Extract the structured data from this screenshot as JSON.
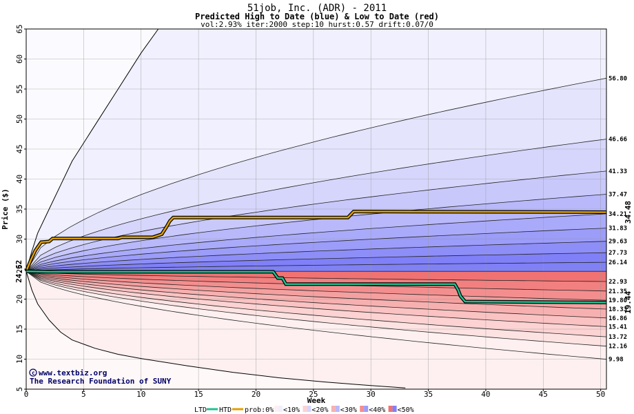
{
  "chart_data": {
    "type": "area",
    "title": "51job, Inc. (ADR) - 2011",
    "subtitle": "Predicted High to Date (blue) &  Low to Date (red)",
    "params": "vol:2.93% iter:2000 step:10 hurst:0.57 drift:0.07/0",
    "xlabel": "Week",
    "ylabel": "Price ($)",
    "xlim": [
      0,
      50.5
    ],
    "ylim": [
      5,
      65
    ],
    "xticks": [
      0,
      5,
      10,
      15,
      20,
      25,
      30,
      35,
      40,
      45,
      50
    ],
    "yticks": [
      5,
      10,
      15,
      20,
      25,
      30,
      35,
      40,
      45,
      50,
      55,
      60,
      65
    ],
    "grid": true,
    "start_price": 24.62,
    "start_price_label": "24.62",
    "high_current_label": "34.48",
    "low_current_label": "19.44",
    "colors": {
      "high_band_outer": "#f0f0fe",
      "high_band_darkest": "#8080f8",
      "low_band_outer": "#fef0f0",
      "low_band_darkest": "#f07272",
      "htd_line": "#e0a000",
      "ltd_line": "#20c090",
      "high_label": "#808000",
      "low_label": "#009060",
      "start_label": "#006000"
    },
    "high_bounds": [
      {
        "end": 56.8,
        "label": "56.80"
      },
      {
        "end": 46.66,
        "label": "46.66"
      },
      {
        "end": 41.33,
        "label": "41.33"
      },
      {
        "end": 37.47,
        "label": "37.47"
      },
      {
        "end": 34.21,
        "label": "34.21"
      },
      {
        "end": 31.83,
        "label": "31.83"
      },
      {
        "end": 29.63,
        "label": "29.63"
      },
      {
        "end": 27.73,
        "label": "27.73"
      },
      {
        "end": 26.14,
        "label": "26.14"
      }
    ],
    "low_bounds": [
      {
        "end": 22.93,
        "label": "22.93"
      },
      {
        "end": 21.35,
        "label": "21.35"
      },
      {
        "end": 19.8,
        "label": "19.80"
      },
      {
        "end": 18.33,
        "label": "18.33"
      },
      {
        "end": 16.86,
        "label": "16.86"
      },
      {
        "end": 15.41,
        "label": "15.41"
      },
      {
        "end": 13.72,
        "label": "13.72"
      },
      {
        "end": 12.16,
        "label": "12.16"
      },
      {
        "end": 9.98,
        "label": "9.98"
      }
    ],
    "extreme_high_line": [
      [
        0,
        24.62
      ],
      [
        0.5,
        28
      ],
      [
        1,
        31
      ],
      [
        2,
        35
      ],
      [
        3,
        39
      ],
      [
        4,
        43
      ],
      [
        6,
        49
      ],
      [
        8,
        55
      ],
      [
        10,
        61
      ],
      [
        11.5,
        65
      ]
    ],
    "extreme_low_line": [
      [
        0,
        24.62
      ],
      [
        0.5,
        21.5
      ],
      [
        1,
        19.2
      ],
      [
        2,
        16.5
      ],
      [
        3,
        14.5
      ],
      [
        4,
        13.2
      ],
      [
        6,
        11.8
      ],
      [
        8,
        10.8
      ],
      [
        10,
        10.1
      ],
      [
        14,
        8.9
      ],
      [
        18,
        7.8
      ],
      [
        22,
        6.9
      ],
      [
        26,
        6.2
      ],
      [
        30,
        5.6
      ],
      [
        33,
        5.2
      ]
    ],
    "htd_series": [
      [
        0,
        24.62
      ],
      [
        0.4,
        26.5
      ],
      [
        0.8,
        28.1
      ],
      [
        1.3,
        29.5
      ],
      [
        2,
        29.6
      ],
      [
        2.3,
        30.1
      ],
      [
        8,
        30.1
      ],
      [
        8.3,
        30.3
      ],
      [
        11,
        30.3
      ],
      [
        11.8,
        30.8
      ],
      [
        12.2,
        32
      ],
      [
        12.5,
        33.0
      ],
      [
        12.8,
        33.6
      ],
      [
        28,
        33.6
      ],
      [
        28.5,
        34.6
      ],
      [
        50.5,
        34.48
      ]
    ],
    "ltd_series": [
      [
        0,
        24.62
      ],
      [
        2,
        24.55
      ],
      [
        21.5,
        24.55
      ],
      [
        21.9,
        23.5
      ],
      [
        22.3,
        23.5
      ],
      [
        22.6,
        22.5
      ],
      [
        37.3,
        22.5
      ],
      [
        37.6,
        21.5
      ],
      [
        37.8,
        20.5
      ],
      [
        38.2,
        19.6
      ],
      [
        50.5,
        19.44
      ]
    ],
    "legend": {
      "ltd": "LTD",
      "htd": "HTD",
      "prob": "prob:0%",
      "items": [
        "<10%",
        "<20%",
        "<30%",
        "<40%",
        "<50%"
      ],
      "colors": [
        "#fef0f0",
        "#fcd2d2",
        "#f7b0b0",
        "#f48e8e",
        "#f07272"
      ],
      "colors_blue": [
        "#f0f0fe",
        "#d6d6fc",
        "#b8b8fb",
        "#9c9cf9",
        "#8080f8"
      ]
    },
    "credits": [
      "www.textbiz.org",
      "The Research Foundation of SUNY"
    ]
  }
}
